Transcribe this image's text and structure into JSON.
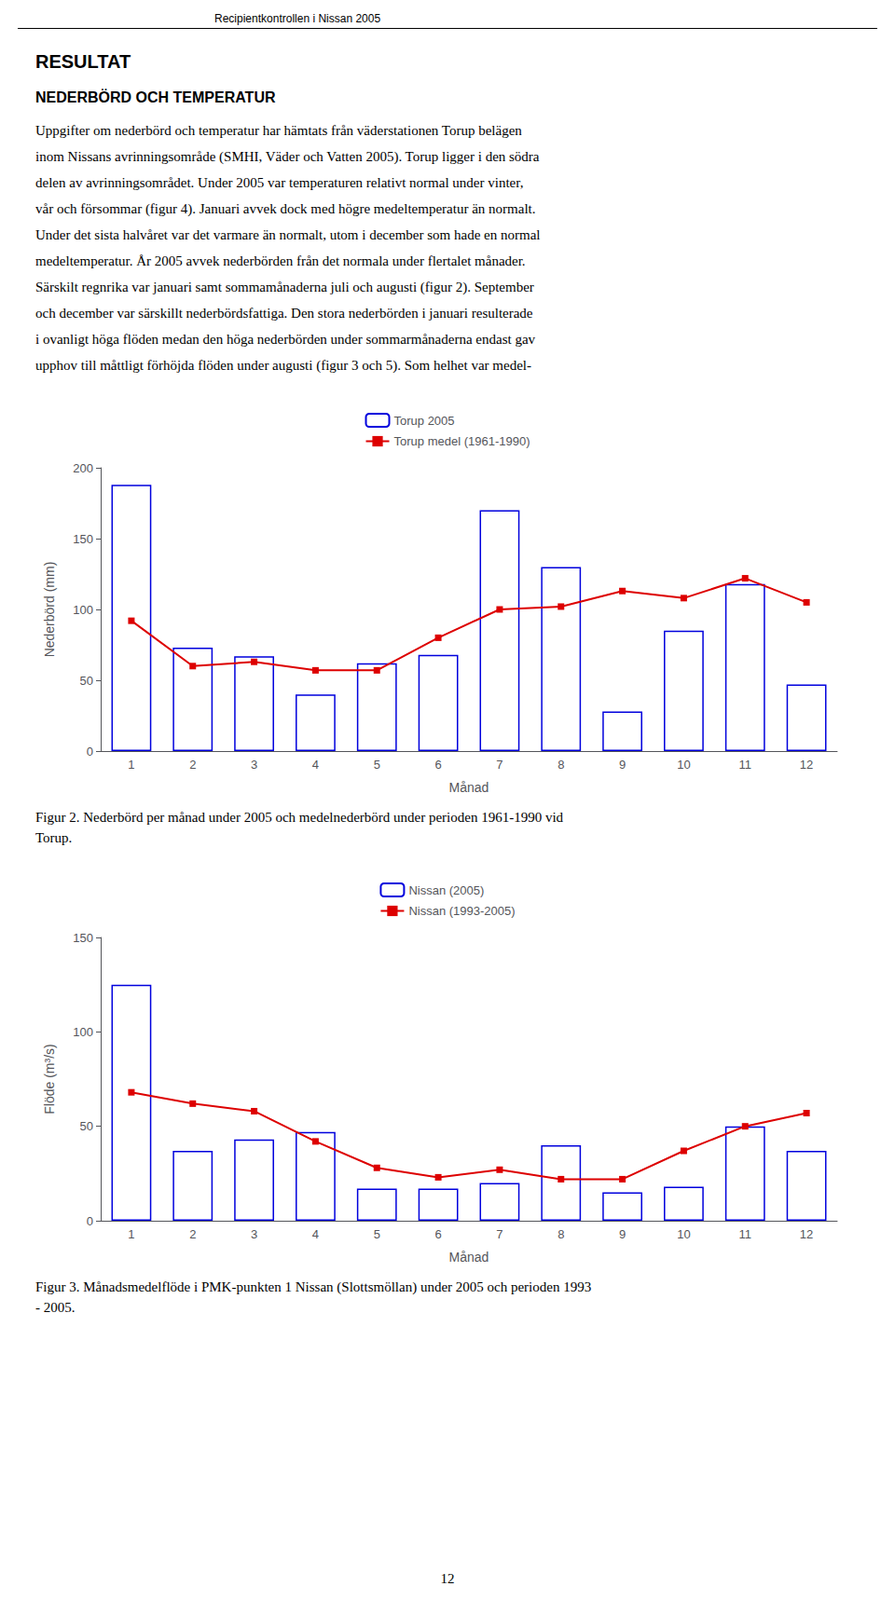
{
  "page": {
    "header": "Recipientkontrollen i Nissan 2005",
    "section_title": "RESULTAT",
    "subsection_title": "NEDERBÖRD OCH TEMPERATUR",
    "body": [
      "Uppgifter om nederbörd och temperatur har hämtats från väderstationen Torup belägen",
      "inom Nissans avrinningsområde (SMHI, Väder och Vatten 2005). Torup ligger i den södra",
      "delen av avrinningsområdet. Under 2005 var temperaturen relativt normal under vinter,",
      "vår och försommar (figur 4). Januari avvek dock med högre medeltemperatur än normalt.",
      "Under det sista halvåret var det varmare än normalt, utom i december som hade en normal",
      "medeltemperatur. År 2005 avvek nederbörden från det normala under flertalet månader.",
      "Särskilt regnrika var januari samt sommamånaderna juli och augusti (figur 2). September",
      "och december var särskillt nederbördsfattiga. Den stora nederbörden i januari resulterade",
      "i ovanligt höga flöden medan den höga nederbörden under sommarmånaderna endast gav",
      "upphov till måttligt förhöjda flöden under augusti (figur 3 och 5). Som helhet var medel-"
    ],
    "page_number": "12"
  },
  "chart_data": [
    {
      "type": "bar",
      "x_label": "Månad",
      "y_label": "Nederbörd (mm)",
      "caption": "Figur 2. Nederbörd per månad under 2005 och medelnederbörd under perioden 1961-1990 vid\nTorup.",
      "categories": [
        1,
        2,
        3,
        4,
        5,
        6,
        7,
        8,
        9,
        10,
        11,
        12
      ],
      "series": [
        {
          "name": "Torup 2005",
          "type": "bar",
          "color": "#0000dd",
          "values": [
            188,
            73,
            67,
            40,
            62,
            68,
            170,
            130,
            28,
            85,
            118,
            47
          ]
        },
        {
          "name": "Torup medel (1961-1990)",
          "type": "line",
          "color": "#dd0000",
          "marker": "square",
          "values": [
            92,
            60,
            63,
            57,
            57,
            80,
            100,
            102,
            113,
            108,
            122,
            105
          ]
        }
      ],
      "ylim": [
        0,
        200
      ],
      "yticks": [
        0,
        50,
        100,
        150,
        200
      ],
      "grid": false,
      "legend": "top"
    },
    {
      "type": "bar",
      "x_label": "Månad",
      "y_label": "Flöde (m³/s)",
      "caption": "Figur 3. Månadsmedelflöde i PMK-punkten 1 Nissan (Slottsmöllan) under 2005 och perioden 1993\n- 2005.",
      "categories": [
        1,
        2,
        3,
        4,
        5,
        6,
        7,
        8,
        9,
        10,
        11,
        12
      ],
      "series": [
        {
          "name": "Nissan (2005)",
          "type": "bar",
          "color": "#0000dd",
          "values": [
            125,
            37,
            43,
            47,
            17,
            17,
            20,
            40,
            15,
            18,
            50,
            37
          ]
        },
        {
          "name": "Nissan (1993-2005)",
          "type": "line",
          "color": "#dd0000",
          "marker": "square",
          "values": [
            68,
            62,
            58,
            42,
            28,
            23,
            27,
            22,
            22,
            37,
            50,
            57
          ]
        }
      ],
      "ylim": [
        0,
        150
      ],
      "yticks": [
        0,
        50,
        100,
        150
      ],
      "grid": false,
      "legend": "top"
    }
  ]
}
